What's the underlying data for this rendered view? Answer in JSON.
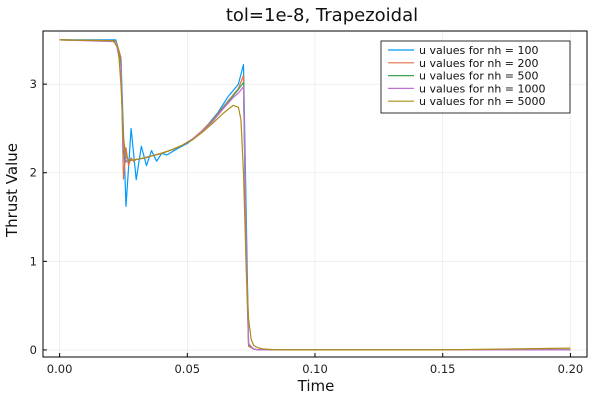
{
  "chart_data": {
    "type": "line",
    "title": "tol=1e-8, Trapezoidal",
    "xlabel": "Time",
    "ylabel": "Thrust Value",
    "xlim": [
      -0.0065,
      0.2065
    ],
    "ylim": [
      -0.08,
      3.6
    ],
    "xticks": [
      0.0,
      0.05,
      0.1,
      0.15,
      0.2
    ],
    "xtick_labels": [
      "0.00",
      "0.05",
      "0.10",
      "0.15",
      "0.20"
    ],
    "yticks": [
      0,
      1,
      2,
      3
    ],
    "ytick_labels": [
      "0",
      "1",
      "2",
      "3"
    ],
    "grid": true,
    "legend_position": "top-right",
    "series": [
      {
        "name": "u values for nh = 100",
        "color": "#009AFA",
        "x": [
          0,
          0.022,
          0.024,
          0.026,
          0.028,
          0.03,
          0.032,
          0.034,
          0.036,
          0.038,
          0.04,
          0.042,
          0.046,
          0.05,
          0.054,
          0.058,
          0.062,
          0.066,
          0.068,
          0.07,
          0.072,
          0.074,
          0.076,
          0.078,
          0.08,
          0.085,
          0.09,
          0.1,
          0.12,
          0.15,
          0.2
        ],
        "y": [
          3.5,
          3.5,
          3.3,
          1.62,
          2.5,
          1.92,
          2.3,
          2.08,
          2.25,
          2.13,
          2.22,
          2.2,
          2.27,
          2.33,
          2.42,
          2.54,
          2.68,
          2.86,
          2.93,
          3.0,
          3.22,
          0.05,
          0.01,
          0.0,
          0.0,
          0.0,
          0.0,
          0.0,
          0.0,
          0.0,
          0.0
        ]
      },
      {
        "name": "u values for nh = 200",
        "color": "#E36F47",
        "x": [
          0,
          0.022,
          0.024,
          0.025,
          0.026,
          0.027,
          0.028,
          0.029,
          0.03,
          0.032,
          0.034,
          0.036,
          0.04,
          0.044,
          0.048,
          0.052,
          0.056,
          0.06,
          0.064,
          0.068,
          0.07,
          0.072,
          0.073,
          0.074,
          0.076,
          0.078,
          0.08,
          0.09,
          0.1,
          0.15,
          0.2
        ],
        "y": [
          3.5,
          3.49,
          3.3,
          1.93,
          2.28,
          2.08,
          2.17,
          2.13,
          2.15,
          2.16,
          2.17,
          2.19,
          2.22,
          2.26,
          2.31,
          2.38,
          2.48,
          2.6,
          2.74,
          2.88,
          2.95,
          3.1,
          1.0,
          0.04,
          0.01,
          0.0,
          0.0,
          0.0,
          0.0,
          0.0,
          0.0
        ]
      },
      {
        "name": "u values for nh = 500",
        "color": "#3EA44E",
        "x": [
          0,
          0.022,
          0.024,
          0.025,
          0.026,
          0.027,
          0.028,
          0.03,
          0.032,
          0.036,
          0.04,
          0.044,
          0.048,
          0.052,
          0.056,
          0.06,
          0.064,
          0.068,
          0.07,
          0.072,
          0.073,
          0.074,
          0.076,
          0.078,
          0.08,
          0.09,
          0.1,
          0.15,
          0.2
        ],
        "y": [
          3.5,
          3.49,
          3.25,
          2.25,
          2.12,
          2.15,
          2.14,
          2.15,
          2.16,
          2.19,
          2.22,
          2.26,
          2.31,
          2.38,
          2.47,
          2.59,
          2.73,
          2.87,
          2.94,
          3.02,
          1.2,
          0.06,
          0.01,
          0.0,
          0.0,
          0.0,
          0.0,
          0.0,
          0.0
        ]
      },
      {
        "name": "u values for nh = 1000",
        "color": "#C271D2",
        "x": [
          0,
          0.022,
          0.024,
          0.025,
          0.026,
          0.027,
          0.028,
          0.03,
          0.032,
          0.036,
          0.04,
          0.044,
          0.048,
          0.052,
          0.056,
          0.06,
          0.064,
          0.068,
          0.07,
          0.072,
          0.073,
          0.074,
          0.076,
          0.078,
          0.08,
          0.09,
          0.1,
          0.15,
          0.2
        ],
        "y": [
          3.5,
          3.48,
          3.2,
          2.3,
          2.13,
          2.14,
          2.14,
          2.15,
          2.16,
          2.19,
          2.22,
          2.26,
          2.31,
          2.38,
          2.47,
          2.58,
          2.72,
          2.85,
          2.9,
          2.97,
          1.3,
          0.07,
          0.01,
          0.0,
          0.0,
          0.0,
          0.0,
          0.0,
          0.0
        ]
      },
      {
        "name": "u values for nh = 5000",
        "color": "#AC8D18",
        "x": [
          0,
          0.021,
          0.023,
          0.024,
          0.025,
          0.026,
          0.027,
          0.028,
          0.03,
          0.032,
          0.036,
          0.04,
          0.044,
          0.048,
          0.052,
          0.056,
          0.06,
          0.064,
          0.068,
          0.07,
          0.071,
          0.072,
          0.073,
          0.074,
          0.075,
          0.076,
          0.078,
          0.08,
          0.085,
          0.09,
          0.1,
          0.15,
          0.2
        ],
        "y": [
          3.5,
          3.49,
          3.4,
          3.0,
          2.4,
          2.18,
          2.14,
          2.14,
          2.15,
          2.16,
          2.19,
          2.22,
          2.26,
          2.31,
          2.37,
          2.46,
          2.56,
          2.67,
          2.76,
          2.74,
          2.6,
          2.0,
          1.0,
          0.35,
          0.12,
          0.05,
          0.02,
          0.01,
          0.0,
          0.0,
          0.0,
          0.0,
          0.02
        ]
      }
    ]
  }
}
